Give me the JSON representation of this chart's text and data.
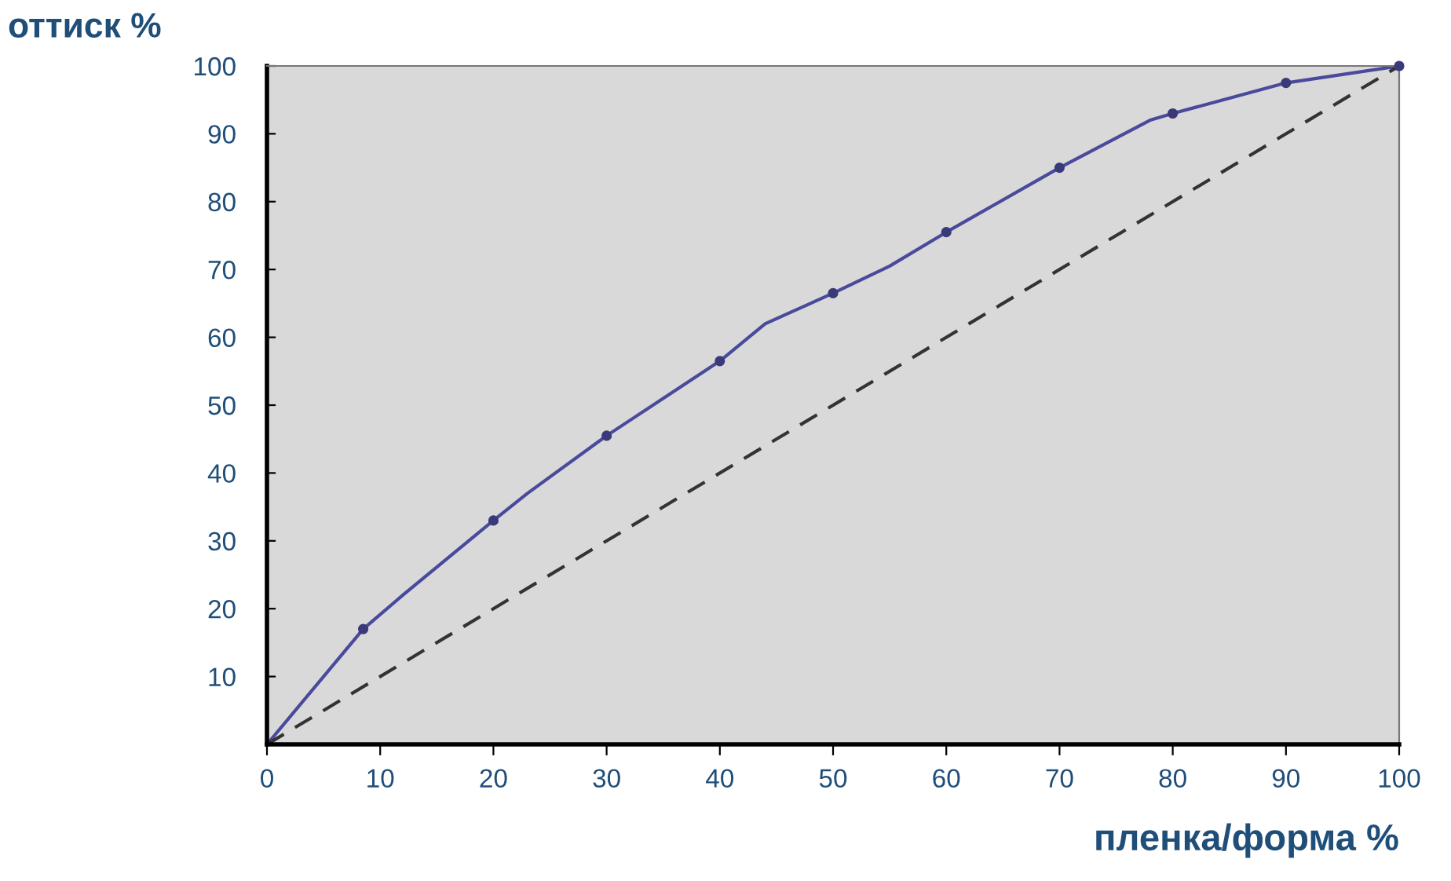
{
  "chart_data": {
    "type": "line",
    "xlabel": "пленка/форма %",
    "ylabel": "оттиск %",
    "xlim": [
      0,
      100
    ],
    "ylim": [
      0,
      100
    ],
    "xticks": [
      0,
      10,
      20,
      30,
      40,
      50,
      60,
      70,
      80,
      90,
      100
    ],
    "yticks": [
      10,
      20,
      30,
      40,
      50,
      60,
      70,
      80,
      90,
      100
    ],
    "grid": false,
    "legend": false,
    "series": [
      {
        "color": "#4a4a9c",
        "marker": "none",
        "line_style": "solid",
        "x": [
          0,
          8.5,
          12,
          20,
          23,
          30,
          40,
          44,
          50,
          55,
          60,
          70,
          78,
          80,
          90,
          100
        ],
        "values": [
          0,
          17,
          22,
          33,
          37,
          45.5,
          56.5,
          62,
          66.5,
          70.5,
          75.5,
          85,
          92,
          93,
          97.5,
          100
        ]
      },
      {
        "type": "scatter",
        "color": "#3a3a7a",
        "marker": "circle",
        "x": [
          8.5,
          20,
          30,
          40,
          50,
          60,
          70,
          80,
          90,
          100
        ],
        "values": [
          17,
          33,
          45.5,
          56.5,
          66.5,
          75.5,
          85,
          93,
          97.5,
          100
        ]
      },
      {
        "color": "#333333",
        "marker": "none",
        "line_style": "dashed",
        "x": [
          0,
          100
        ],
        "values": [
          0,
          100
        ]
      }
    ]
  }
}
